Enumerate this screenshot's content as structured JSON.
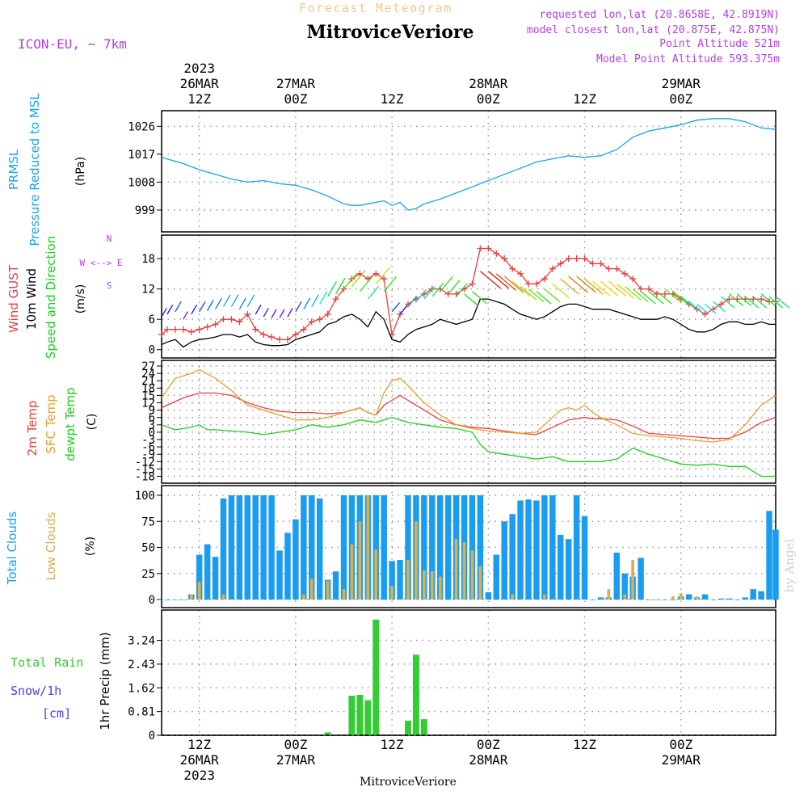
{
  "header": {
    "forecast_label": "Forecast Meteogram",
    "station": "MitroviceVeriore",
    "model": "ICON-EU, ~ 7km",
    "requested": "requested lon,lat (20.8658E, 42.8919N)",
    "closest": "model closest lon,lat (20.875E, 42.875N)",
    "point_alt": "Point Altitude 521m",
    "model_alt": "Model Point Altitude 593.375m",
    "watermark": "by Angel",
    "footer_station": "MitroviceVeriore"
  },
  "time_axis": {
    "ticks": [
      {
        "hour": 12,
        "top": [
          "2023",
          "26MAR",
          "12Z"
        ],
        "bottom": [
          "12Z",
          "26MAR",
          "2023"
        ]
      },
      {
        "hour": 24,
        "top": [
          "27MAR",
          "00Z"
        ],
        "bottom": [
          "00Z",
          "27MAR"
        ]
      },
      {
        "hour": 36,
        "top": [
          "12Z"
        ],
        "bottom": [
          "12Z"
        ]
      },
      {
        "hour": 48,
        "top": [
          "28MAR",
          "00Z"
        ],
        "bottom": [
          "00Z",
          "28MAR"
        ]
      },
      {
        "hour": 60,
        "top": [
          "12Z"
        ],
        "bottom": [
          "12Z"
        ]
      },
      {
        "hour": 72,
        "top": [
          "29MAR",
          "00Z"
        ],
        "bottom": [
          "00Z",
          "29MAR"
        ]
      }
    ],
    "start_hour": 7.3,
    "end_hour": 83.8
  },
  "colors": {
    "pressure": "#1aa3e8",
    "gust": "#e84040",
    "wind": "#000000",
    "temp2m": "#e84040",
    "sfc": "#e8a030",
    "dew": "#22cc22",
    "total_cloud": "#1a9cf0",
    "low_cloud": "#d8b050",
    "rain": "#33cc33",
    "snow": "#4444ee",
    "label_purple": "#b040e0",
    "forecast_label": "#f0c890"
  },
  "chart_data": [
    {
      "type": "line",
      "panel": "pressure",
      "labels": [
        "PRMSL",
        "Pressure Reduced to MSL"
      ],
      "ylabel": "(hPa)",
      "yticks": [
        999,
        1008,
        1017,
        1026
      ],
      "ylim": [
        993,
        1030
      ],
      "series": [
        {
          "x": [
            7.3,
            10,
            12,
            14,
            16,
            18,
            20,
            22,
            24,
            26,
            28,
            30,
            31,
            32,
            33,
            34,
            35,
            36,
            37,
            38,
            39,
            40,
            42,
            44,
            46,
            48,
            50,
            52,
            54,
            56,
            58,
            60,
            62,
            64,
            66,
            68,
            70,
            72,
            74,
            76,
            78,
            80,
            82,
            83.8
          ],
          "values": [
            1016,
            1014,
            1012,
            1010.5,
            1009,
            1008,
            1008.5,
            1007.5,
            1007,
            1005.5,
            1003.5,
            1001,
            1000.5,
            1000.5,
            1001,
            1001.5,
            1002,
            1000.5,
            1001.5,
            999,
            999.5,
            1001,
            1002.5,
            1004.5,
            1006.5,
            1008.5,
            1010.5,
            1012.5,
            1014.5,
            1015.5,
            1016.5,
            1016,
            1016.5,
            1018.5,
            1022.5,
            1024.5,
            1025.5,
            1026.5,
            1028,
            1028.5,
            1028.5,
            1027.5,
            1025.5,
            1025
          ]
        }
      ]
    },
    {
      "type": "line",
      "panel": "wind",
      "labels": [
        "Wind GUST",
        "10m Wind",
        "Speed and Direction"
      ],
      "ylabel": "(m/s)",
      "compass": "N\nW <--> E\nS",
      "yticks": [
        0,
        6,
        12,
        18
      ],
      "ylim": [
        -1,
        22
      ],
      "series": [
        {
          "name": "Wind GUST",
          "x": [
            7.3,
            8,
            9,
            10,
            11,
            12,
            13,
            14,
            15,
            16,
            17,
            18,
            19,
            20,
            21,
            22,
            23,
            24,
            25,
            26,
            27,
            28,
            29,
            30,
            31,
            32,
            33,
            34,
            35,
            36,
            37,
            38,
            39,
            40,
            41,
            42,
            43,
            44,
            45,
            46,
            47,
            48,
            49,
            50,
            51,
            52,
            53,
            54,
            55,
            56,
            57,
            58,
            59,
            60,
            61,
            62,
            63,
            64,
            65,
            66,
            67,
            68,
            69,
            70,
            71,
            72,
            73,
            74,
            75,
            76,
            77,
            78,
            79,
            80,
            81,
            82,
            83,
            83.8
          ],
          "values": [
            3,
            4,
            4,
            4,
            3.5,
            4,
            4.5,
            5,
            6,
            6,
            5.5,
            7,
            4,
            3,
            2.5,
            2,
            2,
            3,
            4,
            5.5,
            6,
            7,
            10,
            12,
            14,
            15,
            14,
            15,
            14,
            3,
            7,
            9,
            10,
            11,
            12,
            12,
            11,
            11,
            12,
            13,
            20,
            20,
            19,
            18,
            16,
            15,
            13,
            13,
            14,
            16,
            17,
            18,
            18,
            18,
            17,
            17,
            16,
            16,
            15,
            14,
            12,
            12,
            11,
            11,
            11,
            10,
            9,
            8,
            7,
            8,
            9,
            10,
            10,
            10,
            10,
            10,
            9.5,
            9.5
          ]
        },
        {
          "name": "10m Wind",
          "x": [
            7.3,
            8,
            9,
            10,
            11,
            12,
            13,
            14,
            15,
            16,
            17,
            18,
            19,
            20,
            21,
            22,
            23,
            24,
            25,
            26,
            27,
            28,
            29,
            30,
            31,
            32,
            33,
            34,
            35,
            36,
            37,
            38,
            39,
            40,
            41,
            42,
            43,
            44,
            45,
            46,
            47,
            48,
            49,
            50,
            51,
            52,
            53,
            54,
            55,
            56,
            57,
            58,
            59,
            60,
            61,
            62,
            63,
            64,
            65,
            66,
            67,
            68,
            69,
            70,
            71,
            72,
            73,
            74,
            75,
            76,
            77,
            78,
            79,
            80,
            81,
            82,
            83,
            83.8
          ],
          "values": [
            1,
            1.5,
            2,
            0.5,
            1.5,
            2,
            2.2,
            2.5,
            3,
            3,
            2.5,
            3,
            1.5,
            1,
            0.8,
            0.8,
            1,
            2,
            2.5,
            3,
            3.5,
            5,
            5.5,
            6.5,
            7,
            6,
            4.5,
            7.5,
            6,
            2,
            1.5,
            3,
            4,
            4.5,
            5,
            6,
            5.5,
            5,
            5.5,
            6,
            10,
            10,
            9.5,
            9,
            8,
            7,
            6.5,
            6,
            6.5,
            7.5,
            8.5,
            9,
            9,
            8.5,
            8,
            8,
            8,
            7.5,
            7,
            6.5,
            6,
            6,
            6,
            6.5,
            6,
            5,
            4,
            3.5,
            3.5,
            4,
            5,
            5.5,
            5.5,
            5,
            5,
            5.5,
            5,
            5
          ]
        }
      ]
    },
    {
      "type": "line",
      "panel": "temperature",
      "labels": [
        "2m Temp",
        "SFC Temp",
        "dewpt Temp"
      ],
      "ylabel": "(C)",
      "yticks": [
        -18,
        -15,
        -12,
        -9,
        -6,
        -3,
        0,
        3,
        6,
        9,
        12,
        15,
        18,
        21,
        24,
        27
      ],
      "ylim": [
        -19.5,
        28
      ],
      "series": [
        {
          "name": "2m Temp",
          "x": [
            7.3,
            10,
            12,
            14,
            16,
            18,
            20,
            22,
            24,
            26,
            28,
            30,
            31,
            32,
            33,
            34,
            35,
            36,
            37,
            38,
            40,
            42,
            44,
            46,
            48,
            50,
            52,
            54,
            56,
            58,
            60,
            61,
            62,
            64,
            66,
            68,
            70,
            72,
            74,
            76,
            78,
            80,
            82,
            83.8
          ],
          "values": [
            10,
            14,
            16,
            16,
            15,
            12,
            10,
            8.5,
            8,
            8,
            7.5,
            8,
            9,
            10,
            8,
            7,
            11,
            13,
            15,
            13,
            9,
            5,
            3,
            2,
            1.5,
            0.5,
            -0.5,
            -1,
            2,
            5,
            6,
            5.5,
            5.5,
            5,
            2.5,
            -0.5,
            -1,
            -1.5,
            -2,
            -2.5,
            -2.5,
            0,
            4,
            6
          ]
        },
        {
          "name": "SFC Temp",
          "x": [
            7.3,
            9,
            11,
            12,
            14,
            16,
            18,
            20,
            22,
            24,
            26,
            28,
            30,
            31,
            32,
            33,
            34,
            35,
            36,
            37,
            38,
            40,
            42,
            44,
            46,
            48,
            50,
            52,
            54,
            56,
            57,
            58,
            59,
            60,
            61,
            62,
            64,
            66,
            68,
            70,
            72,
            74,
            76,
            78,
            80,
            82,
            83.8
          ],
          "values": [
            14,
            22,
            24,
            25.5,
            22,
            17,
            11,
            9,
            7,
            5,
            5,
            6,
            8,
            9,
            10,
            8,
            7,
            16,
            21,
            22,
            19,
            12,
            7,
            3,
            1.5,
            0.5,
            0,
            -0.5,
            0,
            6,
            9,
            10,
            9,
            11,
            8,
            6,
            3,
            -0.5,
            -1.5,
            -2,
            -2.5,
            -3.5,
            -4,
            -3,
            3,
            11,
            15
          ]
        },
        {
          "name": "dewpt Temp",
          "x": [
            7.3,
            9,
            11,
            12,
            13,
            14,
            16,
            18,
            20,
            22,
            24,
            26,
            28,
            30,
            32,
            34,
            36,
            38,
            40,
            42,
            44,
            46,
            47,
            48,
            50,
            52,
            54,
            56,
            58,
            60,
            62,
            64,
            66,
            68,
            70,
            72,
            74,
            76,
            78,
            80,
            82,
            83.8
          ],
          "values": [
            3,
            1,
            2,
            3,
            1,
            1,
            0.5,
            0,
            -1,
            0,
            1,
            3,
            2,
            3,
            5,
            4,
            6,
            4,
            3,
            2,
            1.5,
            0,
            -5,
            -8,
            -9,
            -10,
            -11,
            -10,
            -12,
            -12,
            -12,
            -11,
            -6.5,
            -9,
            -11,
            -13,
            -13.5,
            -13,
            -14,
            -14,
            -18,
            -18
          ]
        }
      ]
    },
    {
      "type": "bar",
      "panel": "clouds",
      "labels": [
        "Total Clouds",
        "Low Clouds"
      ],
      "ylabel": "(%)",
      "yticks": [
        0,
        25,
        50,
        75,
        100
      ],
      "ylim": [
        0,
        100
      ],
      "series": [
        {
          "name": "Total Clouds",
          "x": [
            7,
            8,
            9,
            10,
            11,
            12,
            13,
            14,
            15,
            16,
            17,
            18,
            19,
            20,
            21,
            22,
            23,
            24,
            25,
            26,
            27,
            28,
            29,
            30,
            31,
            32,
            33,
            34,
            35,
            36,
            37,
            38,
            39,
            40,
            41,
            42,
            43,
            44,
            45,
            46,
            47,
            48,
            49,
            50,
            51,
            52,
            53,
            54,
            55,
            56,
            57,
            58,
            59,
            60,
            61,
            62,
            63,
            64,
            65,
            66,
            67,
            68,
            69,
            70,
            71,
            72,
            73,
            74,
            75,
            76,
            77,
            78,
            79,
            80,
            81,
            82,
            83,
            83.8
          ],
          "values": [
            0,
            0,
            0,
            0,
            5,
            43,
            53,
            41,
            97,
            100,
            100,
            100,
            100,
            100,
            100,
            47,
            64,
            77,
            100,
            100,
            97,
            19,
            27,
            100,
            100,
            100,
            100,
            100,
            100,
            37,
            38,
            100,
            100,
            100,
            100,
            100,
            100,
            100,
            100,
            100,
            100,
            7,
            43,
            75,
            82,
            95,
            96,
            95,
            100,
            100,
            62,
            58,
            100,
            80,
            0,
            2,
            2,
            45,
            25,
            22,
            40,
            0,
            0,
            0,
            0,
            3,
            5,
            2,
            5,
            0,
            1,
            1,
            0,
            2,
            10,
            8,
            85,
            67
          ]
        },
        {
          "name": "Low Clouds",
          "x": [
            11,
            12,
            13,
            15,
            25,
            26,
            28,
            30,
            31,
            32,
            33,
            34,
            35,
            36,
            38,
            39,
            40,
            41,
            42,
            43,
            44,
            45,
            46,
            47,
            49,
            51,
            55,
            58,
            63,
            65,
            66,
            67,
            71,
            72,
            74
          ],
          "values": [
            5,
            17,
            0,
            5,
            5,
            20,
            18,
            10,
            53,
            75,
            100,
            48,
            0,
            13,
            38,
            75,
            28,
            27,
            22,
            0,
            58,
            55,
            47,
            32,
            0,
            5,
            5,
            0,
            10,
            5,
            38,
            0,
            3,
            6,
            3
          ]
        }
      ]
    },
    {
      "type": "bar",
      "panel": "precip",
      "labels": [
        "Total Rain",
        "Snow/1h",
        "[cm]"
      ],
      "ylabel": "1hr Precip (mm)",
      "yticks": [
        0,
        0.81,
        1.62,
        2.43,
        3.24
      ],
      "ylim": [
        0,
        4
      ],
      "series": [
        {
          "name": "Total Rain",
          "x": [
            28,
            31,
            32,
            33,
            34,
            38,
            39,
            40,
            45
          ],
          "values": [
            0.1,
            1.35,
            1.38,
            1.2,
            3.95,
            0.5,
            2.75,
            0.55,
            0.03
          ]
        }
      ]
    }
  ]
}
